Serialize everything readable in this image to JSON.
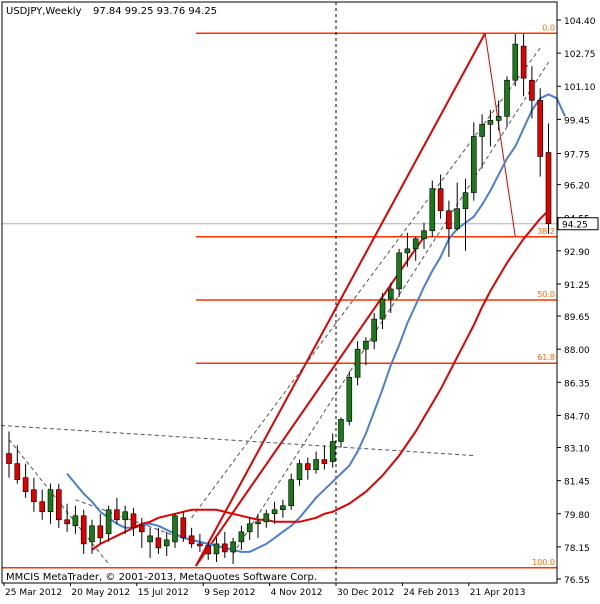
{
  "header": {
    "symbol_timeframe": "USDJPY,Weekly",
    "ohlc": "97.84 99.25 93.76 94.25"
  },
  "footer": {
    "copyright": "MMCIS MetaTrader, © 2001-2013, MetaQuotes Software Corp."
  },
  "colors": {
    "background": "#ffffff",
    "axis": "#000000",
    "bull_candle": "#1a7a1a",
    "bear_candle": "#e00000",
    "fib_lines": "#ff3300",
    "fib_labels": "#ff6600",
    "fast_ma": "#4a7fd4",
    "slow_ma": "#e00000",
    "channel_dashed": "#555555",
    "trend_lines": "#e00000",
    "price_tag": "#ffffff"
  },
  "chart_data": {
    "type": "candlestick",
    "title": "USDJPY,Weekly",
    "ylim": [
      76.55,
      104.5
    ],
    "y_ticks": [
      "104.40",
      "102.75",
      "101.10",
      "99.45",
      "97.75",
      "96.20",
      "94.55",
      "92.90",
      "91.25",
      "89.65",
      "88.00",
      "86.35",
      "84.70",
      "83.10",
      "81.45",
      "79.80",
      "78.15",
      "76.55"
    ],
    "x_ticks": [
      "25 Mar 2012",
      "20 May 2012",
      "15 Jul 2012",
      "9 Sep 2012",
      "4 Nov 2012",
      "30 Dec 2012",
      "24 Feb 2013",
      "21 Apr 2013"
    ],
    "current_price": 94.25,
    "current_price_label": "94.25",
    "vertical_marker_date": "30 Dec 2012",
    "fibonacci": [
      {
        "level": "0.0",
        "price": 103.74
      },
      {
        "level": "38.2",
        "price": 93.6
      },
      {
        "level": "50.0",
        "price": 90.45
      },
      {
        "level": "61.8",
        "price": 87.3
      },
      {
        "level": "100.0",
        "price": 77.11
      }
    ],
    "candles": [
      {
        "o": 82.8,
        "h": 83.9,
        "l": 81.6,
        "c": 82.3
      },
      {
        "o": 82.3,
        "h": 83.2,
        "l": 81.3,
        "c": 81.5
      },
      {
        "o": 81.6,
        "h": 82.3,
        "l": 80.6,
        "c": 80.9
      },
      {
        "o": 81.0,
        "h": 81.6,
        "l": 79.9,
        "c": 80.4
      },
      {
        "o": 80.4,
        "h": 81.0,
        "l": 79.5,
        "c": 79.9
      },
      {
        "o": 79.9,
        "h": 81.3,
        "l": 79.3,
        "c": 81.0
      },
      {
        "o": 81.0,
        "h": 81.3,
        "l": 79.1,
        "c": 79.5
      },
      {
        "o": 79.5,
        "h": 80.3,
        "l": 78.9,
        "c": 79.3
      },
      {
        "o": 79.2,
        "h": 80.2,
        "l": 78.8,
        "c": 79.7
      },
      {
        "o": 79.7,
        "h": 80.0,
        "l": 77.8,
        "c": 78.3
      },
      {
        "o": 78.4,
        "h": 79.5,
        "l": 77.8,
        "c": 79.2
      },
      {
        "o": 79.2,
        "h": 79.8,
        "l": 78.3,
        "c": 78.6
      },
      {
        "o": 78.8,
        "h": 80.2,
        "l": 78.4,
        "c": 80.0
      },
      {
        "o": 80.0,
        "h": 80.6,
        "l": 79.3,
        "c": 79.5
      },
      {
        "o": 79.5,
        "h": 80.2,
        "l": 78.8,
        "c": 79.9
      },
      {
        "o": 79.8,
        "h": 80.1,
        "l": 78.7,
        "c": 79.1
      },
      {
        "o": 79.2,
        "h": 79.6,
        "l": 78.1,
        "c": 78.9
      },
      {
        "o": 78.4,
        "h": 79.1,
        "l": 77.6,
        "c": 78.7
      },
      {
        "o": 78.6,
        "h": 79.1,
        "l": 77.8,
        "c": 78.1
      },
      {
        "o": 78.2,
        "h": 78.9,
        "l": 77.7,
        "c": 78.5
      },
      {
        "o": 78.4,
        "h": 79.8,
        "l": 78.1,
        "c": 79.7
      },
      {
        "o": 79.6,
        "h": 79.9,
        "l": 78.4,
        "c": 78.6
      },
      {
        "o": 78.7,
        "h": 79.1,
        "l": 78.1,
        "c": 78.3
      },
      {
        "o": 78.3,
        "h": 78.8,
        "l": 77.9,
        "c": 78.2
      },
      {
        "o": 78.2,
        "h": 78.4,
        "l": 77.5,
        "c": 77.8
      },
      {
        "o": 77.8,
        "h": 78.6,
        "l": 77.4,
        "c": 78.3
      },
      {
        "o": 78.3,
        "h": 78.9,
        "l": 77.6,
        "c": 77.9
      },
      {
        "o": 77.9,
        "h": 78.6,
        "l": 77.3,
        "c": 78.4
      },
      {
        "o": 78.4,
        "h": 79.2,
        "l": 78.0,
        "c": 78.9
      },
      {
        "o": 78.9,
        "h": 79.6,
        "l": 78.5,
        "c": 79.3
      },
      {
        "o": 79.3,
        "h": 79.8,
        "l": 78.6,
        "c": 79.4
      },
      {
        "o": 79.4,
        "h": 80.0,
        "l": 79.1,
        "c": 79.8
      },
      {
        "o": 79.8,
        "h": 80.4,
        "l": 79.3,
        "c": 80.0
      },
      {
        "o": 80.0,
        "h": 80.5,
        "l": 79.6,
        "c": 80.2
      },
      {
        "o": 80.2,
        "h": 81.8,
        "l": 80.0,
        "c": 81.5
      },
      {
        "o": 81.5,
        "h": 82.5,
        "l": 81.2,
        "c": 82.3
      },
      {
        "o": 82.3,
        "h": 82.6,
        "l": 81.5,
        "c": 82.0
      },
      {
        "o": 82.0,
        "h": 82.9,
        "l": 81.8,
        "c": 82.5
      },
      {
        "o": 82.5,
        "h": 83.2,
        "l": 82.0,
        "c": 82.3
      },
      {
        "o": 82.4,
        "h": 83.8,
        "l": 82.1,
        "c": 83.4
      },
      {
        "o": 83.4,
        "h": 84.6,
        "l": 83.1,
        "c": 84.5
      },
      {
        "o": 84.4,
        "h": 86.9,
        "l": 84.2,
        "c": 86.6
      },
      {
        "o": 86.6,
        "h": 88.4,
        "l": 86.2,
        "c": 88.0
      },
      {
        "o": 88.0,
        "h": 88.6,
        "l": 87.2,
        "c": 88.4
      },
      {
        "o": 88.4,
        "h": 89.8,
        "l": 88.0,
        "c": 89.5
      },
      {
        "o": 89.5,
        "h": 90.8,
        "l": 89.0,
        "c": 90.5
      },
      {
        "o": 90.5,
        "h": 91.3,
        "l": 89.8,
        "c": 91.0
      },
      {
        "o": 91.0,
        "h": 93.0,
        "l": 90.6,
        "c": 92.8
      },
      {
        "o": 92.8,
        "h": 93.8,
        "l": 92.1,
        "c": 93.0
      },
      {
        "o": 93.0,
        "h": 93.6,
        "l": 92.4,
        "c": 93.5
      },
      {
        "o": 93.5,
        "h": 94.3,
        "l": 93.0,
        "c": 93.9
      },
      {
        "o": 93.9,
        "h": 96.4,
        "l": 93.6,
        "c": 96.0
      },
      {
        "o": 96.0,
        "h": 96.7,
        "l": 94.5,
        "c": 94.9
      },
      {
        "o": 94.9,
        "h": 95.4,
        "l": 92.6,
        "c": 94.0
      },
      {
        "o": 94.0,
        "h": 96.3,
        "l": 93.9,
        "c": 95.0
      },
      {
        "o": 95.0,
        "h": 96.5,
        "l": 92.9,
        "c": 95.8
      },
      {
        "o": 95.8,
        "h": 99.3,
        "l": 95.4,
        "c": 98.6
      },
      {
        "o": 98.6,
        "h": 99.7,
        "l": 97.0,
        "c": 99.2
      },
      {
        "o": 99.2,
        "h": 99.9,
        "l": 98.1,
        "c": 99.4
      },
      {
        "o": 99.4,
        "h": 100.4,
        "l": 98.9,
        "c": 99.6
      },
      {
        "o": 99.6,
        "h": 101.6,
        "l": 99.1,
        "c": 101.4
      },
      {
        "o": 101.4,
        "h": 103.7,
        "l": 101.1,
        "c": 103.2
      },
      {
        "o": 103.1,
        "h": 103.7,
        "l": 100.6,
        "c": 101.5
      },
      {
        "o": 101.4,
        "h": 102.1,
        "l": 99.5,
        "c": 100.4
      },
      {
        "o": 100.4,
        "h": 101.0,
        "l": 96.6,
        "c": 97.6
      },
      {
        "o": 97.8,
        "h": 99.25,
        "l": 93.76,
        "c": 94.25
      }
    ],
    "fast_ma": [
      null,
      null,
      null,
      null,
      null,
      81.8,
      81.3,
      80.8,
      80.4,
      79.9,
      79.6,
      79.3,
      79.1,
      79.1,
      79.2,
      79.3,
      79.2,
      79.0,
      78.8,
      78.6,
      78.5,
      78.4,
      78.3,
      78.2,
      78.1,
      78.0,
      77.9,
      77.9,
      78.1,
      78.3,
      78.6,
      78.9,
      79.2,
      79.6,
      80.1,
      80.6,
      81.0,
      81.4,
      81.8,
      82.2,
      82.9,
      83.8,
      84.9,
      86.0,
      87.2,
      88.2,
      89.3,
      90.2,
      91.1,
      91.9,
      92.6,
      93.5,
      94.0,
      94.3,
      94.6,
      95.2,
      95.9,
      96.7,
      97.5,
      98.1,
      99.0,
      99.9,
      100.5,
      100.7,
      100.5,
      99.6
    ],
    "slow_ma": [
      78.0,
      78.3,
      78.5,
      78.7,
      78.9,
      79.1,
      79.3,
      79.4,
      79.6,
      79.7,
      79.8,
      79.9,
      80.0,
      80.0,
      80.0,
      80.0,
      79.9,
      79.8,
      79.7,
      79.6,
      79.5,
      79.5,
      79.4,
      79.4,
      79.4,
      79.4,
      79.5,
      79.6,
      79.8,
      79.9,
      80.1,
      80.3,
      80.6,
      80.9,
      81.3,
      81.7,
      82.2,
      82.7,
      83.3,
      83.9,
      84.6,
      85.3,
      86.0,
      86.8,
      87.6,
      88.4,
      89.2,
      90.1,
      90.9,
      91.6,
      92.3,
      92.9,
      93.5,
      94.0,
      94.5,
      94.9
    ]
  }
}
